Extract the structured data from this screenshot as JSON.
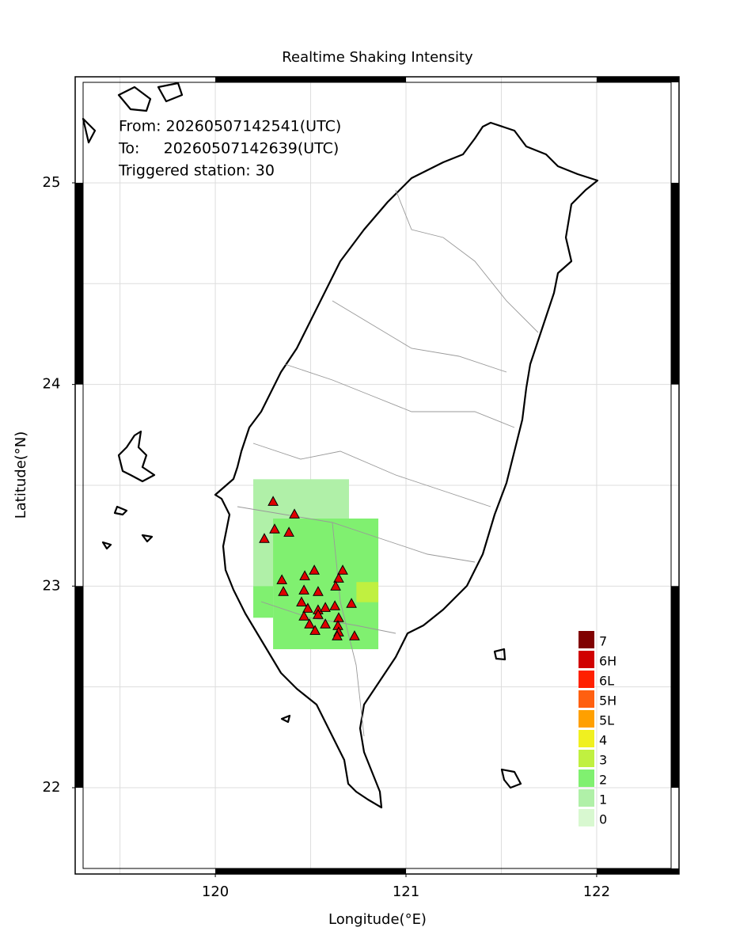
{
  "chart_data": {
    "type": "map",
    "title": "Realtime Shaking Intensity",
    "xlabel": "Longitude(°E)",
    "ylabel": "Latitude(°N)",
    "annotations": [
      "From: 20260507142541(UTC)",
      "To:     20260507142639(UTC)",
      "Triggered station: 30"
    ],
    "xlim": [
      119.265,
      122.432
    ],
    "ylim": [
      21.572,
      25.526
    ],
    "xticks": [
      120,
      121,
      122
    ],
    "yticks": [
      22,
      23,
      24,
      25
    ],
    "xgrid": [
      119.5,
      120,
      120.5,
      121,
      121.5,
      122
    ],
    "ygrid": [
      22,
      22.5,
      23,
      23.5,
      24,
      24.5,
      25
    ],
    "grid": true,
    "legend": {
      "labels": [
        "0",
        "1",
        "2",
        "3",
        "4",
        "5L",
        "5H",
        "6L",
        "6H",
        "7"
      ],
      "colors": [
        "#d8f8d0",
        "#b0f0a8",
        "#80f070",
        "#c0f040",
        "#f0f020",
        "#ffa000",
        "#ff6010",
        "#ff2000",
        "#d00000",
        "#800000"
      ]
    },
    "cells": [
      {
        "lon": [
          120.199,
          120.701
        ],
        "lat": [
          23.0,
          23.53
        ],
        "level": 1
      },
      {
        "lon": [
          120.303,
          120.855
        ],
        "lat": [
          22.687,
          23.335
        ],
        "level": 2
      },
      {
        "lon": [
          120.199,
          120.303
        ],
        "lat": [
          22.843,
          23.0
        ],
        "level": 2
      },
      {
        "lon": [
          120.74,
          120.855
        ],
        "lat": [
          22.92,
          23.02
        ],
        "level": 3
      }
    ],
    "stations": {
      "color": "#e00000",
      "x": [
        120.303,
        120.415,
        120.311,
        120.386,
        120.257,
        120.349,
        120.357,
        120.519,
        120.469,
        120.668,
        120.647,
        120.631,
        120.465,
        120.539,
        120.452,
        120.714,
        120.485,
        120.539,
        120.577,
        120.627,
        120.465,
        120.539,
        120.647,
        120.494,
        120.577,
        120.643,
        120.523,
        120.647,
        120.639,
        120.73
      ],
      "y": [
        23.42,
        23.357,
        23.283,
        23.267,
        23.236,
        23.031,
        22.973,
        23.079,
        23.051,
        23.079,
        23.039,
        23.0,
        22.98,
        22.973,
        22.921,
        22.914,
        22.89,
        22.882,
        22.894,
        22.902,
        22.851,
        22.859,
        22.843,
        22.812,
        22.812,
        22.804,
        22.78,
        22.772,
        22.753,
        22.753
      ]
    }
  }
}
